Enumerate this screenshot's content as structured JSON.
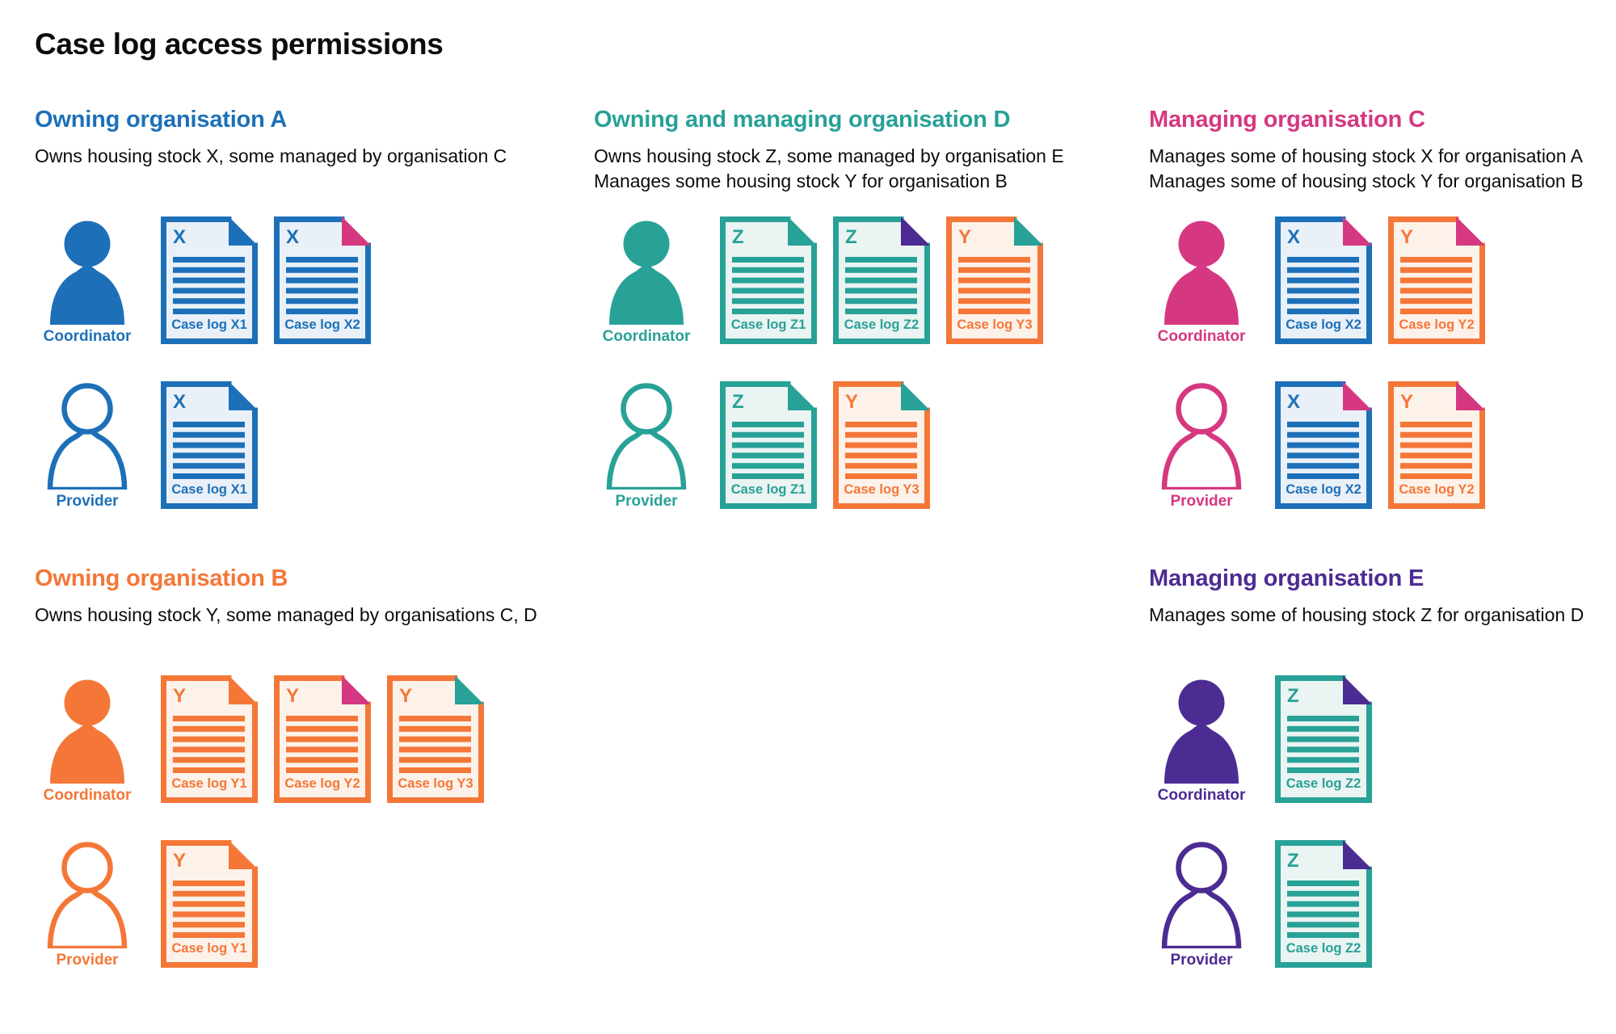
{
  "title": "Case log access permissions",
  "colors": {
    "blue": "#1d70b8",
    "orange": "#f47738",
    "pink": "#d53880",
    "teal": "#28a197",
    "purple": "#4c2c92",
    "ink": "#0b0c0c",
    "tints": {
      "blue": "#e9f0f8",
      "orange": "#fdf2ea",
      "teal": "#eaf4f2"
    }
  },
  "sections": [
    {
      "id": "org-a",
      "heading": "Owning organisation A",
      "color": "blue",
      "description": [
        "Owns housing stock X, some managed by organisation C"
      ],
      "people": [
        {
          "role": "Coordinator",
          "style": "filled",
          "docs": [
            {
              "label": "Case log X1",
              "letter": "X",
              "stock": "blue",
              "fold": "blue"
            },
            {
              "label": "Case log X2",
              "letter": "X",
              "stock": "blue",
              "fold": "pink"
            }
          ]
        },
        {
          "role": "Provider",
          "style": "outline",
          "docs": [
            {
              "label": "Case log X1",
              "letter": "X",
              "stock": "blue",
              "fold": "blue"
            }
          ]
        }
      ]
    },
    {
      "id": "org-d",
      "heading": "Owning and managing organisation D",
      "color": "teal",
      "description": [
        "Owns housing stock Z, some managed by organisation E",
        "Manages some housing stock Y for organisation B"
      ],
      "people": [
        {
          "role": "Coordinator",
          "style": "filled",
          "docs": [
            {
              "label": "Case log Z1",
              "letter": "Z",
              "stock": "teal",
              "fold": "teal"
            },
            {
              "label": "Case log Z2",
              "letter": "Z",
              "stock": "teal",
              "fold": "purple"
            },
            {
              "label": "Case log Y3",
              "letter": "Y",
              "stock": "orange",
              "fold": "teal"
            }
          ]
        },
        {
          "role": "Provider",
          "style": "outline",
          "docs": [
            {
              "label": "Case log Z1",
              "letter": "Z",
              "stock": "teal",
              "fold": "teal"
            },
            {
              "label": "Case log Y3",
              "letter": "Y",
              "stock": "orange",
              "fold": "teal"
            }
          ]
        }
      ]
    },
    {
      "id": "org-c",
      "heading": "Managing organisation C",
      "color": "pink",
      "description": [
        "Manages some of housing stock X for organisation A",
        "Manages some of housing stock Y for organisation B"
      ],
      "people": [
        {
          "role": "Coordinator",
          "style": "filled",
          "docs": [
            {
              "label": "Case log X2",
              "letter": "X",
              "stock": "blue",
              "fold": "pink"
            },
            {
              "label": "Case log Y2",
              "letter": "Y",
              "stock": "orange",
              "fold": "pink"
            }
          ]
        },
        {
          "role": "Provider",
          "style": "outline",
          "docs": [
            {
              "label": "Case log X2",
              "letter": "X",
              "stock": "blue",
              "fold": "pink"
            },
            {
              "label": "Case log Y2",
              "letter": "Y",
              "stock": "orange",
              "fold": "pink"
            }
          ]
        }
      ]
    },
    {
      "id": "org-b",
      "heading": "Owning organisation B",
      "color": "orange",
      "description": [
        "Owns housing stock Y, some managed by organisations C, D"
      ],
      "people": [
        {
          "role": "Coordinator",
          "style": "filled",
          "docs": [
            {
              "label": "Case log Y1",
              "letter": "Y",
              "stock": "orange",
              "fold": "orange"
            },
            {
              "label": "Case log Y2",
              "letter": "Y",
              "stock": "orange",
              "fold": "pink"
            },
            {
              "label": "Case log Y3",
              "letter": "Y",
              "stock": "orange",
              "fold": "teal"
            }
          ]
        },
        {
          "role": "Provider",
          "style": "outline",
          "docs": [
            {
              "label": "Case log Y1",
              "letter": "Y",
              "stock": "orange",
              "fold": "orange"
            }
          ]
        }
      ]
    },
    {
      "id": "org-e",
      "heading": "Managing organisation E",
      "color": "purple",
      "description": [
        "Manages some of housing stock Z for organisation D"
      ],
      "people": [
        {
          "role": "Coordinator",
          "style": "filled",
          "docs": [
            {
              "label": "Case log Z2",
              "letter": "Z",
              "stock": "teal",
              "fold": "purple"
            }
          ]
        },
        {
          "role": "Provider",
          "style": "outline",
          "docs": [
            {
              "label": "Case log Z2",
              "letter": "Z",
              "stock": "teal",
              "fold": "purple"
            }
          ]
        }
      ]
    }
  ]
}
